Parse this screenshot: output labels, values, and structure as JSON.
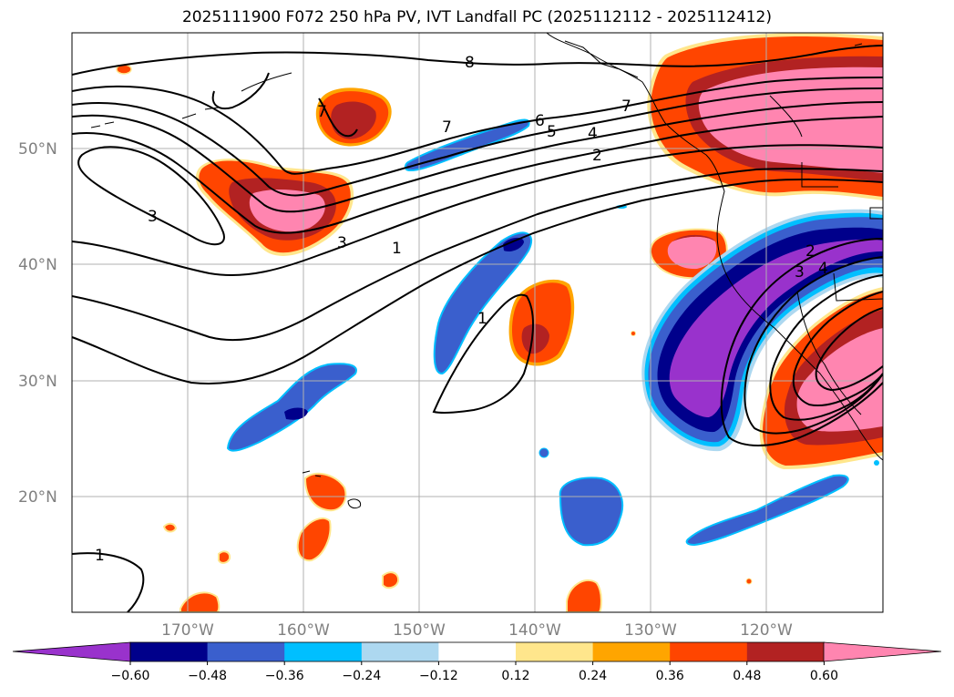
{
  "title": "2025111900 F072 250 hPa PV, IVT Landfall PC (2025112112 - 2025112412)",
  "lat_labels": [
    "50°N",
    "40°N",
    "30°N",
    "20°N"
  ],
  "lon_labels": [
    "170°W",
    "160°W",
    "150°W",
    "140°W",
    "130°W",
    "120°W"
  ],
  "colorbar": {
    "ticks": [
      "−0.60",
      "−0.48",
      "−0.36",
      "−0.24",
      "−0.12",
      "0.12",
      "0.24",
      "0.36",
      "0.48",
      "0.60"
    ],
    "colors": [
      "#9932cc",
      "#00008b",
      "#3a5fcd",
      "#00bfff",
      "#add8f0",
      "#ffffff",
      "#ffe68c",
      "#ffa500",
      "#ff4500",
      "#b22222",
      "#ff85b0"
    ],
    "under_color": "#9932cc",
    "over_color": "#ff85b0"
  },
  "contour_labels": [
    "8",
    "7",
    "6",
    "5",
    "4",
    "2",
    "3",
    "3",
    "1",
    "1",
    "1",
    "2",
    "3",
    "4",
    "7",
    "7"
  ]
}
